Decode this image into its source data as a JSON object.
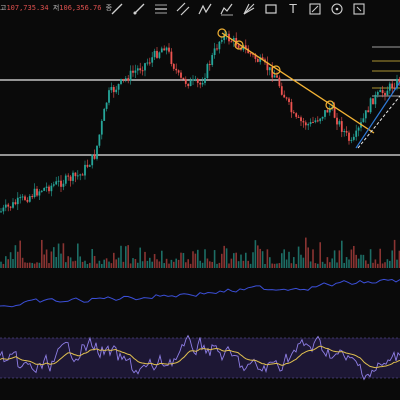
{
  "ohlc": {
    "high_label": "고",
    "high_value": "107,735.34",
    "low_label": "저",
    "low_value": "106,356.76",
    "close_label": "종"
  },
  "toolbar": {
    "tools": [
      {
        "name": "trend-line-icon"
      },
      {
        "name": "ray-line-icon"
      },
      {
        "name": "horizontal-line-icon"
      },
      {
        "name": "channel-icon"
      },
      {
        "name": "zigzag-icon"
      },
      {
        "name": "fib-icon"
      },
      {
        "name": "gann-icon"
      },
      {
        "name": "rectangle-icon"
      },
      {
        "name": "text-tool-icon",
        "glyph": "T"
      },
      {
        "name": "measure-icon"
      },
      {
        "name": "crosshair-icon"
      },
      {
        "name": "more-tools-icon"
      }
    ]
  },
  "colors": {
    "up": "#26a69a",
    "down": "#ef5350",
    "trendline": "#f2b234",
    "hline": "#e8e8e8",
    "volume_line": "#3b4fd8",
    "rsi_line": "#7b6ad0",
    "rsi_signal": "#e0c050",
    "rsi_band": "#2a2150"
  }
}
